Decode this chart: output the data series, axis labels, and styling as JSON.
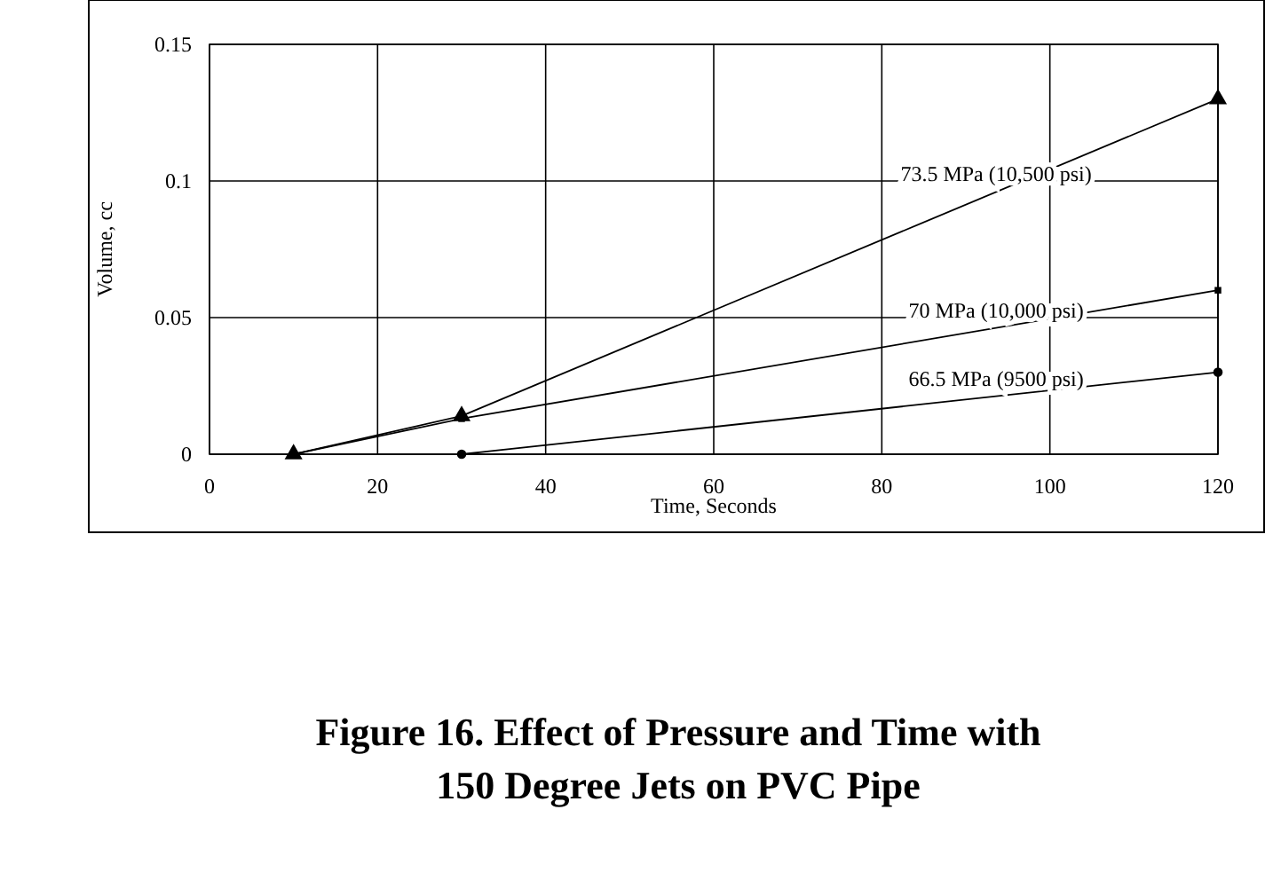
{
  "chart_data": {
    "type": "line",
    "title": "Figure 16.  Effect of Pressure and Time with\n150 Degree Jets on PVC Pipe",
    "xlabel": "Time, Seconds",
    "ylabel": "Volume, cc",
    "xlim": [
      0,
      120
    ],
    "xticks": [
      0,
      20,
      40,
      60,
      80,
      100,
      120
    ],
    "ylim": [
      0,
      0.15
    ],
    "yticks": [
      0,
      0.05,
      0.1,
      0.15
    ],
    "grid": true,
    "legend": false,
    "series": [
      {
        "name": "73.5 MPa (10,500 psi)",
        "color": "#000000",
        "marker": "triangle",
        "x": [
          10,
          30,
          120
        ],
        "values": [
          0,
          0.014,
          0.13
        ]
      },
      {
        "name": "70 MPa (10,000 psi)",
        "color": "#000000",
        "marker": "square",
        "x": [
          10,
          30,
          120
        ],
        "values": [
          0,
          0.013,
          0.06
        ]
      },
      {
        "name": "66.5 MPa (9500 psi)",
        "color": "#000000",
        "marker": "circle",
        "x": [
          30,
          120
        ],
        "values": [
          0,
          0.03
        ]
      }
    ]
  }
}
